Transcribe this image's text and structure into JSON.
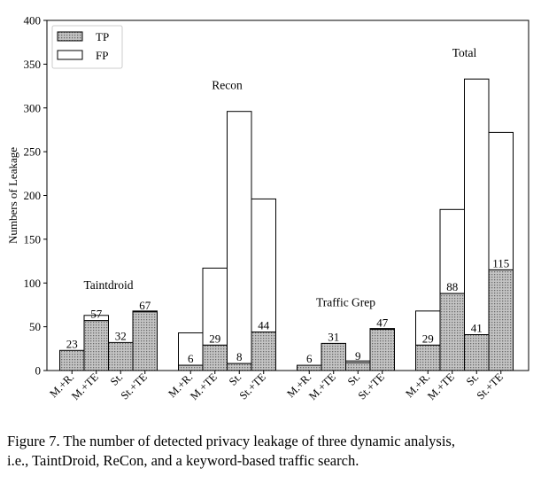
{
  "chart_data": {
    "type": "bar",
    "ylabel": "Numbers of Leakage",
    "ylim": [
      0,
      400
    ],
    "yticks": [
      0,
      50,
      100,
      150,
      200,
      250,
      300,
      350,
      400
    ],
    "legend": {
      "placement": "top-left",
      "entries": [
        {
          "name": "TP",
          "pattern": "dotted-gray"
        },
        {
          "name": "FP",
          "pattern": "white"
        }
      ]
    },
    "grid": false,
    "groups": [
      {
        "name": "Taintdroid",
        "categories": [
          "M.+R.",
          "M.+TE",
          "St.",
          "St.+TE"
        ],
        "tp": [
          23,
          57,
          32,
          67
        ],
        "fp": [
          0,
          6,
          0,
          1
        ],
        "labels": [
          "23",
          "57",
          "32",
          "67"
        ]
      },
      {
        "name": "Recon",
        "categories": [
          "M.+R.",
          "M.+TE",
          "St.",
          "St.+TE"
        ],
        "tp": [
          6,
          29,
          8,
          44
        ],
        "fp": [
          37,
          88,
          288,
          152
        ],
        "labels": [
          "6",
          "29",
          "8",
          "44"
        ]
      },
      {
        "name": "Traffic Grep",
        "categories": [
          "M.+R.",
          "M.+TE",
          "St.",
          "St.+TE"
        ],
        "tp": [
          6,
          31,
          9,
          47
        ],
        "fp": [
          0,
          0,
          2,
          1
        ],
        "labels": [
          "6",
          "31",
          "9",
          "47"
        ]
      },
      {
        "name": "Total",
        "categories": [
          "M.+R.",
          "M.+TE",
          "St.",
          "St.+TE"
        ],
        "tp": [
          29,
          88,
          41,
          115
        ],
        "fp": [
          39,
          96,
          292,
          157
        ],
        "labels": [
          "29",
          "88",
          "41",
          "115"
        ]
      }
    ]
  },
  "caption": {
    "line1": "Figure 7.  The number of detected privacy leakage of three dynamic analysis,",
    "line2": "i.e., TaintDroid, ReCon, and a keyword-based traffic search."
  }
}
